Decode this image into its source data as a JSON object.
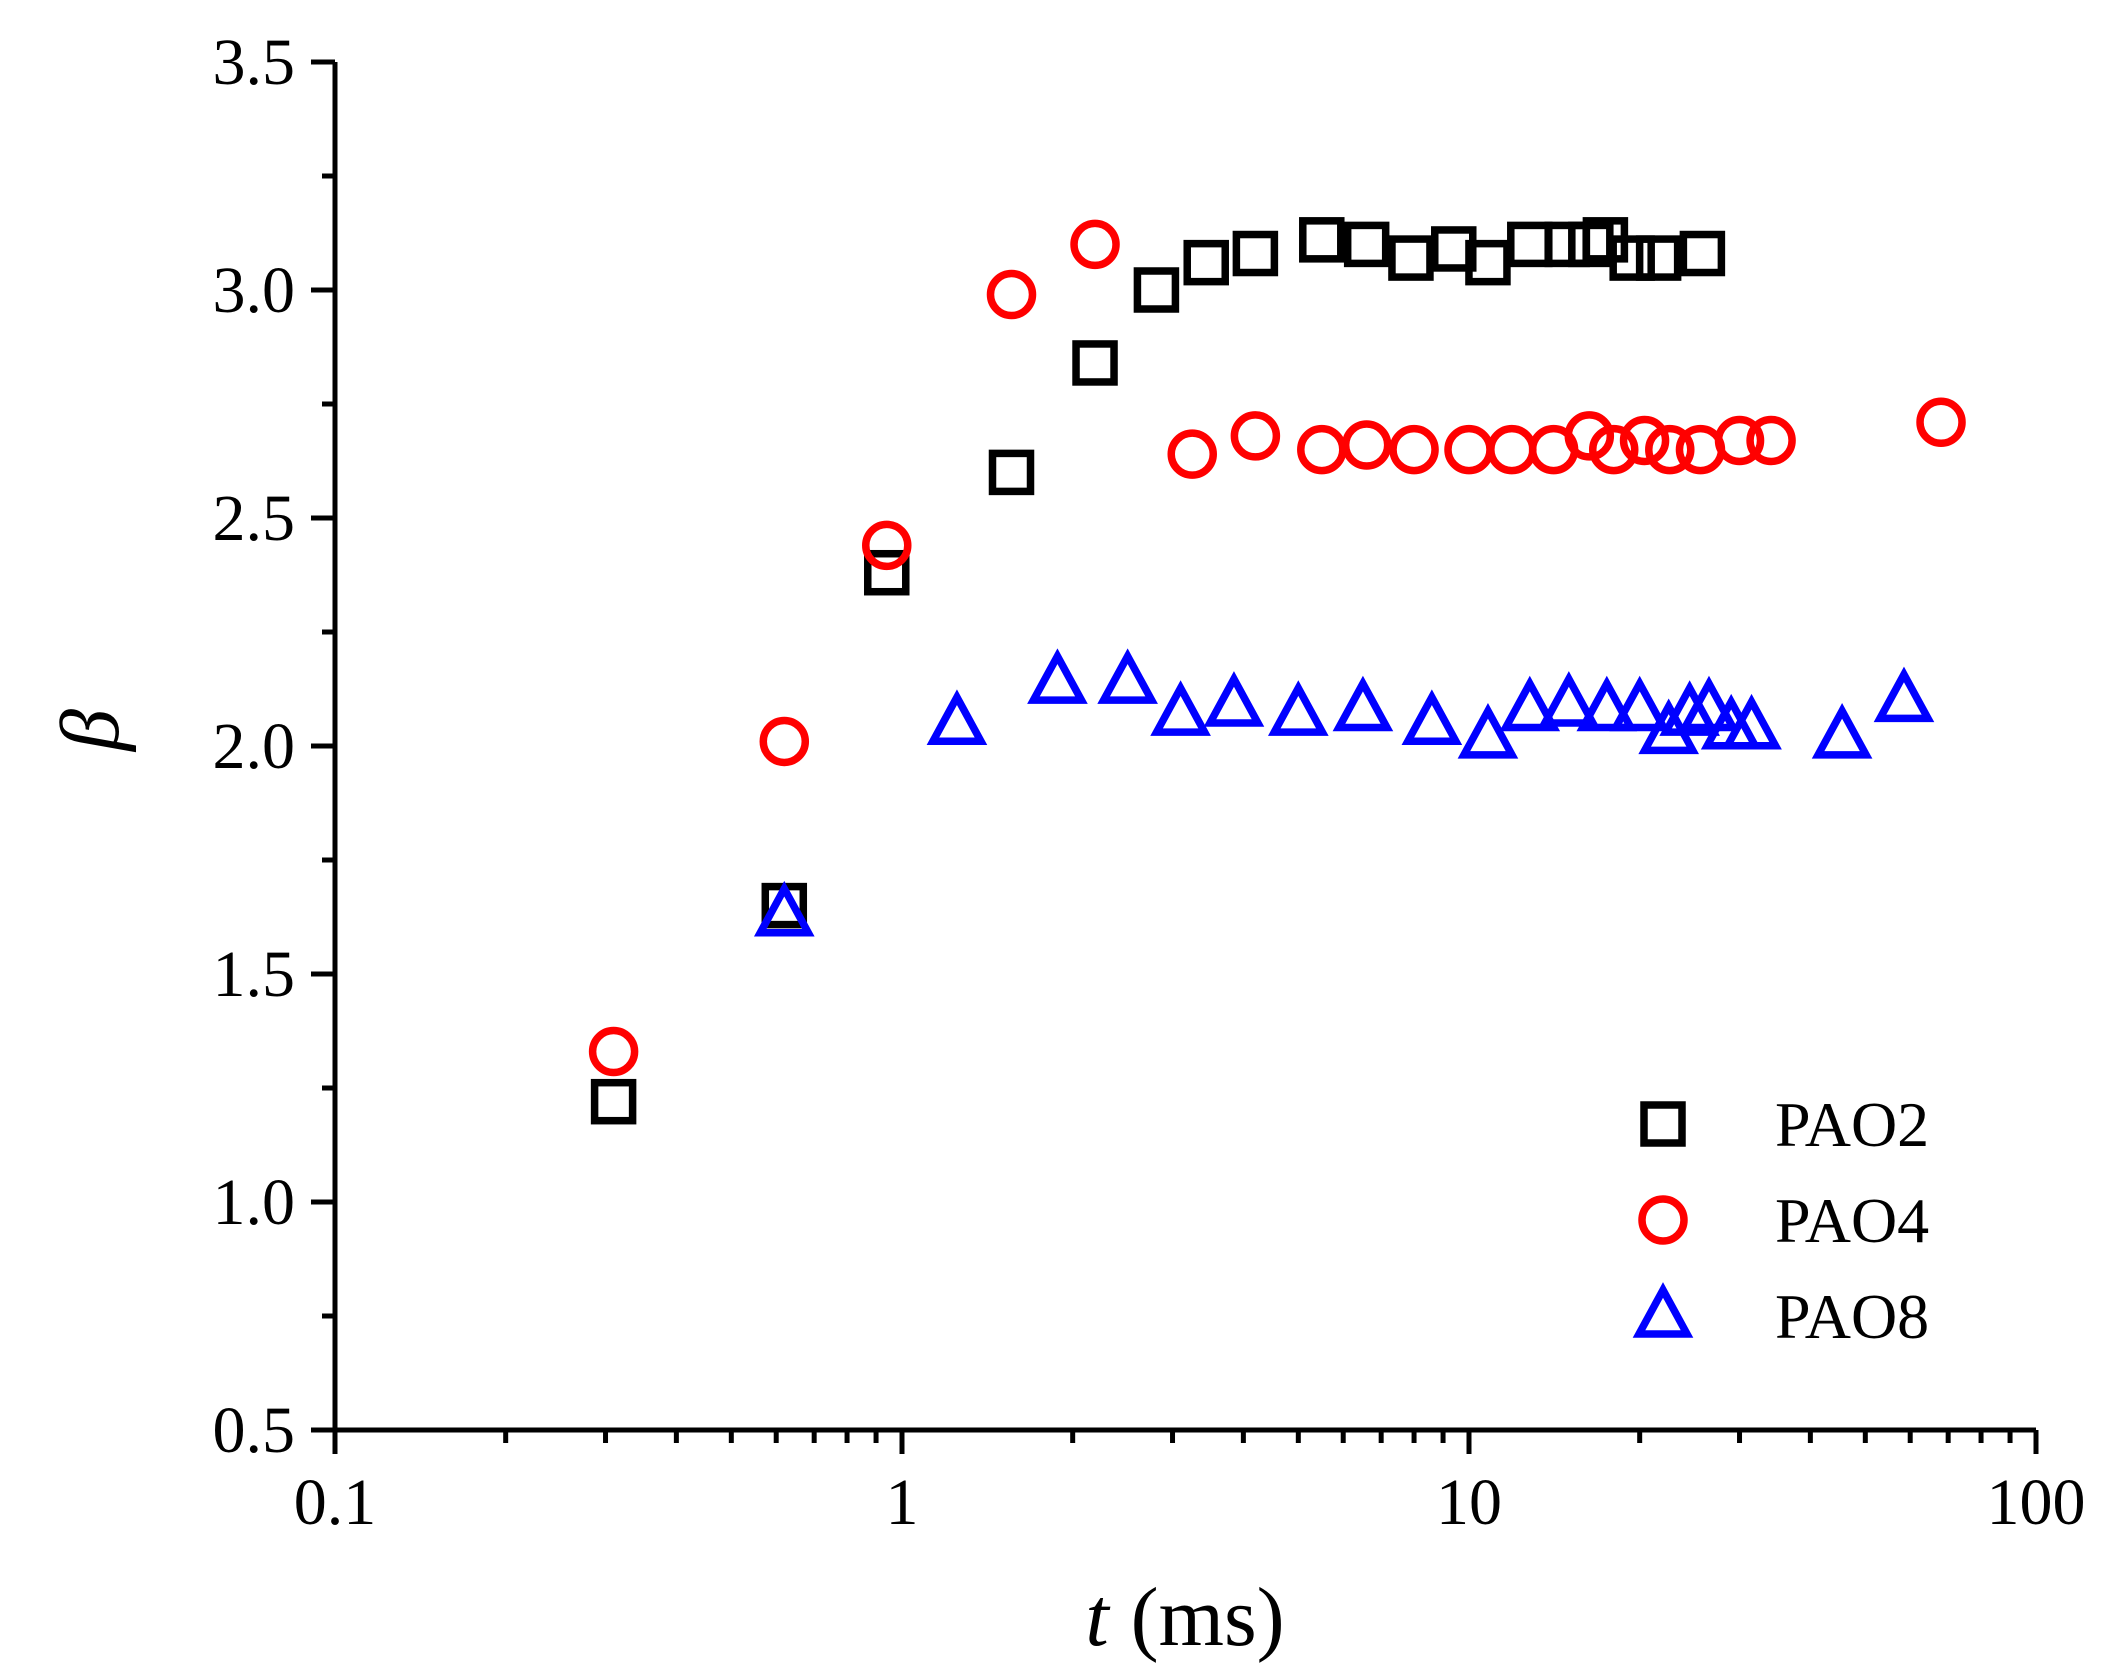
{
  "chart_data": {
    "type": "scatter",
    "title": "",
    "xlabel": "t (ms)",
    "xlabel_var": "t",
    "xlabel_unit": "(ms)",
    "ylabel": "β",
    "xscale": "log",
    "xlim": [
      0.1,
      100
    ],
    "ylim": [
      0.5,
      3.5
    ],
    "x_ticks": [
      0.1,
      1,
      10,
      100
    ],
    "x_tick_labels": [
      "0.1",
      "1",
      "10",
      "100"
    ],
    "y_ticks": [
      0.5,
      1.0,
      1.5,
      2.0,
      2.5,
      3.0,
      3.5
    ],
    "y_tick_labels": [
      "0.5",
      "1.0",
      "1.5",
      "2.0",
      "2.5",
      "3.0",
      "3.5"
    ],
    "grid": false,
    "legend_position": "bottom-right",
    "series": [
      {
        "name": "PAO2",
        "marker": "square",
        "color": "#000000",
        "x": [
          0.31,
          0.62,
          0.94,
          1.56,
          2.19,
          2.81,
          3.44,
          4.2,
          5.5,
          6.6,
          7.9,
          9.4,
          10.8,
          12.8,
          14.9,
          16.4,
          17.4,
          19.4,
          21.6,
          25.8
        ],
        "y": [
          1.22,
          1.65,
          2.38,
          2.6,
          2.84,
          3.0,
          3.06,
          3.08,
          3.11,
          3.1,
          3.07,
          3.09,
          3.06,
          3.1,
          3.1,
          3.1,
          3.11,
          3.07,
          3.07,
          3.08
        ]
      },
      {
        "name": "PAO4",
        "marker": "circle",
        "color": "#ff0000",
        "x": [
          0.31,
          0.62,
          0.94,
          1.56,
          2.19,
          3.25,
          4.2,
          5.5,
          6.6,
          8.0,
          10.0,
          11.9,
          14.1,
          16.3,
          18.0,
          20.4,
          22.6,
          25.6,
          30.0,
          34.1,
          68.0
        ],
        "y": [
          1.33,
          2.01,
          2.44,
          2.99,
          3.1,
          2.64,
          2.68,
          2.65,
          2.66,
          2.65,
          2.65,
          2.65,
          2.65,
          2.68,
          2.65,
          2.67,
          2.65,
          2.65,
          2.67,
          2.67,
          2.71
        ]
      },
      {
        "name": "PAO8",
        "marker": "triangle",
        "color": "#0000ff",
        "x": [
          0.62,
          1.25,
          1.88,
          2.5,
          3.1,
          3.85,
          5.0,
          6.5,
          8.6,
          10.8,
          12.8,
          15.0,
          17.5,
          20.0,
          22.5,
          24.5,
          26.5,
          29.0,
          31.5,
          45.5,
          58.5
        ],
        "y": [
          1.63,
          2.05,
          2.14,
          2.14,
          2.07,
          2.09,
          2.07,
          2.08,
          2.05,
          2.02,
          2.08,
          2.09,
          2.08,
          2.08,
          2.03,
          2.07,
          2.08,
          2.04,
          2.04,
          2.02,
          2.1
        ]
      }
    ]
  }
}
